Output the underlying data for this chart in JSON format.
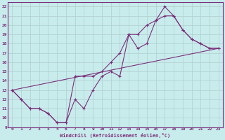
{
  "xlabel": "Windchill (Refroidissement éolien,°C)",
  "background_color": "#c8ecec",
  "line_color": "#7b2f7b",
  "grid_color": "#b0cece",
  "xlim": [
    -0.5,
    23.5
  ],
  "ylim": [
    9,
    22.5
  ],
  "xticks": [
    0,
    1,
    2,
    3,
    4,
    5,
    6,
    7,
    8,
    9,
    10,
    11,
    12,
    13,
    14,
    15,
    16,
    17,
    18,
    19,
    20,
    21,
    22,
    23
  ],
  "yticks": [
    9,
    10,
    11,
    12,
    13,
    14,
    15,
    16,
    17,
    18,
    19,
    20,
    21,
    22
  ],
  "line1_x": [
    0,
    1,
    2,
    3,
    4,
    5,
    6,
    7,
    8,
    9,
    10,
    11,
    12,
    13,
    14,
    15,
    16,
    17,
    18,
    19,
    20,
    21,
    22,
    23
  ],
  "line1_y": [
    13,
    12,
    11,
    11,
    10.5,
    9.5,
    9.5,
    12,
    11,
    13,
    14.5,
    15,
    14.5,
    19,
    17.5,
    18,
    20.5,
    22,
    21,
    19.5,
    18.5,
    18,
    17.5,
    17.5
  ],
  "line2_x": [
    0,
    1,
    2,
    3,
    4,
    5,
    6,
    7,
    8,
    9,
    10,
    11,
    12,
    13,
    14,
    15,
    16,
    17,
    18,
    19,
    20,
    21,
    22,
    23
  ],
  "line2_y": [
    13,
    12,
    11,
    11,
    10.5,
    9.5,
    9.5,
    14.5,
    14.5,
    14.5,
    15,
    16,
    17,
    19,
    19,
    20,
    20.5,
    21,
    21,
    19.5,
    18.5,
    18,
    17.5,
    17.5
  ],
  "line3_x": [
    0,
    23
  ],
  "line3_y": [
    13,
    17.5
  ]
}
